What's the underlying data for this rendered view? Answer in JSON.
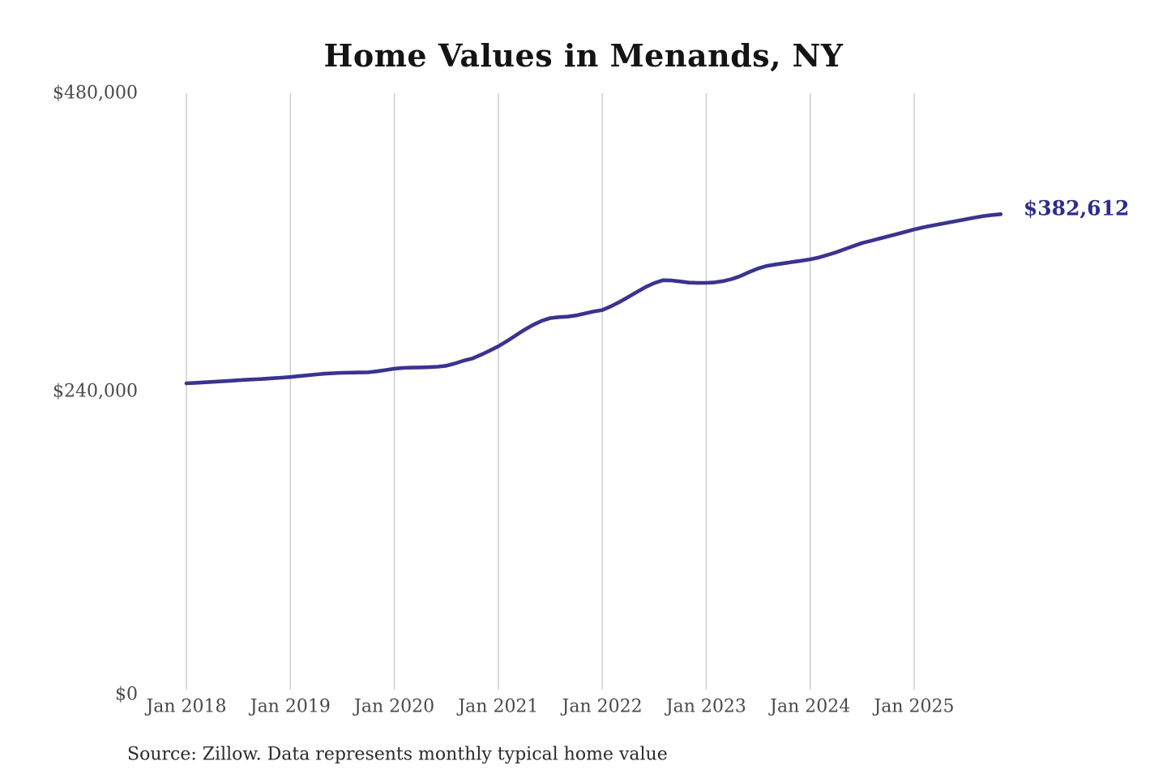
{
  "chart_data": {
    "type": "line",
    "title": "Home Values in Menands, NY",
    "source": "Source: Zillow. Data represents monthly typical home value",
    "series_name": "Monthly typical home value",
    "unit": "USD",
    "start_date": "2018-01",
    "end_date": "2025-11",
    "frequency": "monthly",
    "ylim": [
      0,
      480000
    ],
    "grid": "vertical-only",
    "legend_position": "none",
    "end_label": "$382,612",
    "latest_value": 382612,
    "y_ticks": [
      {
        "label": "$0",
        "value": 0
      },
      {
        "label": "$240,000",
        "value": 240000
      },
      {
        "label": "$480,000",
        "value": 480000
      }
    ],
    "x_ticks": [
      "Jan 2018",
      "Jan 2019",
      "Jan 2020",
      "Jan 2021",
      "Jan 2022",
      "Jan 2023",
      "Jan 2024",
      "Jan 2025"
    ],
    "values": [
      246500,
      246900,
      247300,
      247700,
      248100,
      248550,
      249000,
      249400,
      249800,
      250200,
      250650,
      251100,
      251600,
      252300,
      253000,
      253700,
      254300,
      254700,
      255000,
      255150,
      255250,
      255400,
      256200,
      257200,
      258300,
      258900,
      259200,
      259300,
      259500,
      259900,
      260700,
      262500,
      264800,
      266500,
      269500,
      272800,
      276300,
      280500,
      285000,
      289500,
      293500,
      296800,
      299000,
      299800,
      300200,
      301200,
      302800,
      304300,
      305500,
      308500,
      312000,
      316000,
      320000,
      324000,
      327200,
      329500,
      329300,
      328500,
      327600,
      327300,
      327400,
      327800,
      328800,
      330500,
      333000,
      336200,
      339000,
      341000,
      342200,
      343200,
      344200,
      345200,
      346300,
      347800,
      349800,
      352000,
      354500,
      357000,
      359500,
      361200,
      363000,
      364800,
      366600,
      368500,
      370400,
      372000,
      373400,
      374700,
      376000,
      377300,
      378600,
      379900,
      381100,
      382000,
      382612
    ],
    "colors": {
      "line": "#3a3390",
      "end_label_text": "#2f2c8a",
      "gridline": "#cbcbcb",
      "tick_text": "#4a4a4a",
      "title_text": "#141414",
      "source_text": "#2b2b2b",
      "background": "#ffffff"
    }
  }
}
